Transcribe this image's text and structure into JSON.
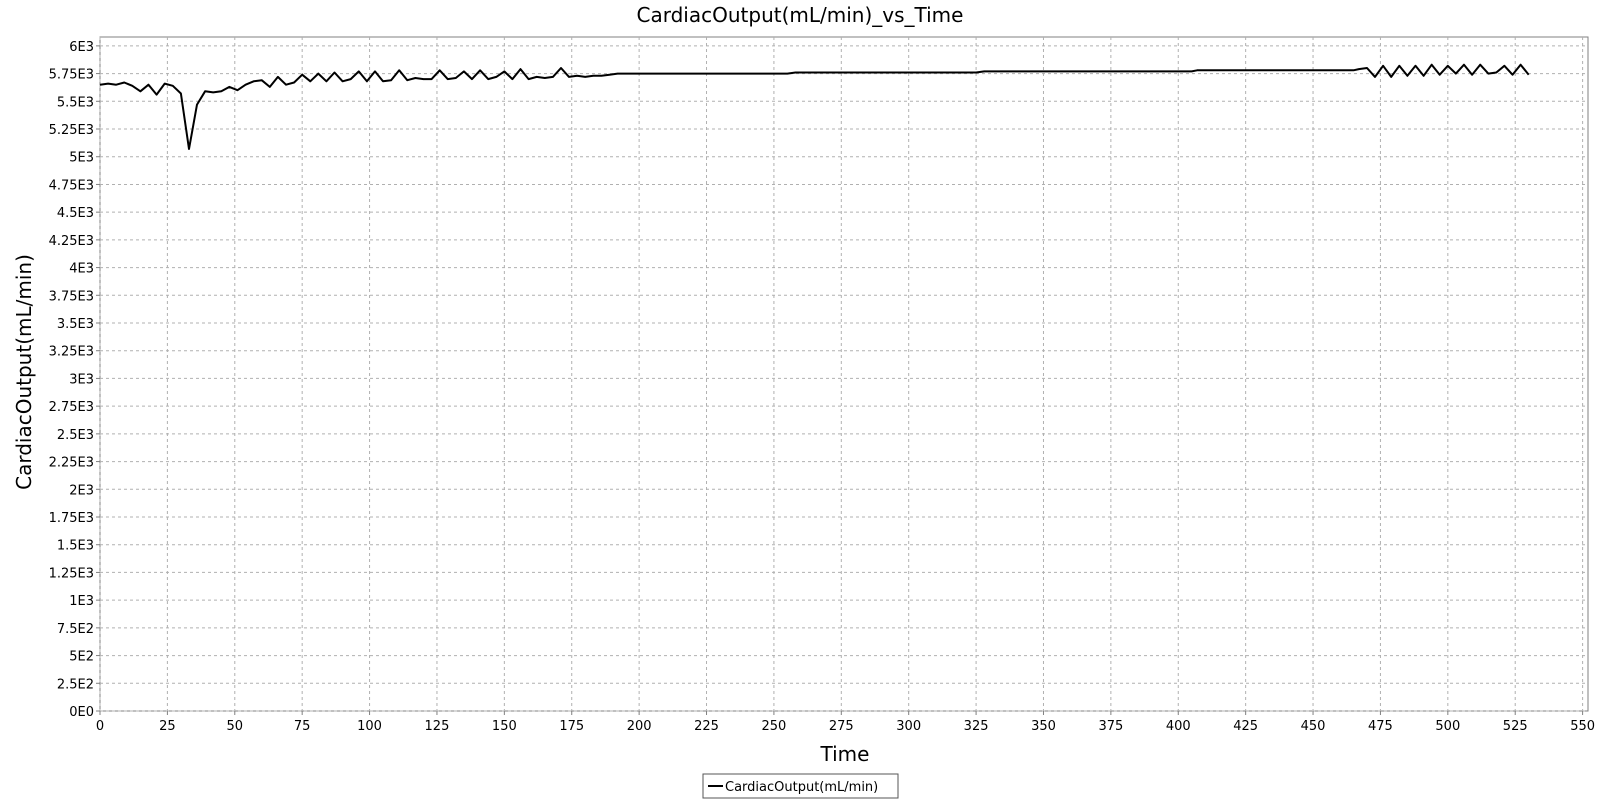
{
  "chart_data": {
    "type": "line",
    "title": "CardiacOutput(mL/min)_vs_Time",
    "xlabel": "Time",
    "ylabel": "CardiacOutput(mL/min)",
    "xlim": [
      0,
      552
    ],
    "ylim": [
      0,
      6080
    ],
    "grid": true,
    "legend_position": "bottom-center",
    "x_ticks": [
      0,
      25,
      50,
      75,
      100,
      125,
      150,
      175,
      200,
      225,
      250,
      275,
      300,
      325,
      350,
      375,
      400,
      425,
      450,
      475,
      500,
      525,
      550
    ],
    "x_tick_labels": [
      "0",
      "25",
      "50",
      "75",
      "100",
      "125",
      "150",
      "175",
      "200",
      "225",
      "250",
      "275",
      "300",
      "325",
      "350",
      "375",
      "400",
      "425",
      "450",
      "475",
      "500",
      "525",
      "550"
    ],
    "y_ticks": [
      0,
      250,
      500,
      750,
      1000,
      1250,
      1500,
      1750,
      2000,
      2250,
      2500,
      2750,
      3000,
      3250,
      3500,
      3750,
      4000,
      4250,
      4500,
      4750,
      5000,
      5250,
      5500,
      5750,
      6000
    ],
    "y_tick_labels": [
      "0E0",
      "2.5E2",
      "5E2",
      "7.5E2",
      "1E3",
      "1.25E3",
      "1.5E3",
      "1.75E3",
      "2E3",
      "2.25E3",
      "2.5E3",
      "2.75E3",
      "3E3",
      "3.25E3",
      "3.5E3",
      "3.75E3",
      "4E3",
      "4.25E3",
      "4.5E3",
      "4.75E3",
      "5E3",
      "5.25E3",
      "5.5E3",
      "5.75E3",
      "6E3"
    ],
    "series": [
      {
        "name": "CardiacOutput(mL/min)",
        "color": "#000000",
        "x": [
          0,
          3,
          6,
          9,
          12,
          15,
          18,
          21,
          24,
          27,
          30,
          33,
          36,
          39,
          42,
          45,
          48,
          51,
          54,
          57,
          60,
          63,
          66,
          69,
          72,
          75,
          78,
          81,
          84,
          87,
          90,
          93,
          96,
          99,
          102,
          105,
          108,
          111,
          114,
          117,
          120,
          123,
          126,
          129,
          132,
          135,
          138,
          141,
          144,
          147,
          150,
          153,
          156,
          159,
          162,
          165,
          168,
          171,
          174,
          177,
          180,
          183,
          186,
          189,
          192,
          195,
          200,
          225,
          250,
          255,
          258,
          275,
          300,
          325,
          328,
          350,
          375,
          400,
          405,
          407,
          425,
          450,
          460,
          465,
          467,
          470,
          473,
          476,
          479,
          482,
          485,
          488,
          491,
          494,
          497,
          500,
          503,
          506,
          509,
          512,
          515,
          518,
          521,
          524,
          527,
          530
        ],
        "y": [
          5650,
          5660,
          5650,
          5670,
          5640,
          5590,
          5650,
          5560,
          5660,
          5640,
          5570,
          5070,
          5470,
          5590,
          5580,
          5590,
          5630,
          5600,
          5650,
          5680,
          5690,
          5630,
          5720,
          5650,
          5670,
          5740,
          5680,
          5750,
          5680,
          5760,
          5680,
          5700,
          5770,
          5680,
          5770,
          5680,
          5690,
          5780,
          5690,
          5710,
          5700,
          5700,
          5780,
          5700,
          5710,
          5770,
          5700,
          5780,
          5700,
          5720,
          5770,
          5700,
          5790,
          5700,
          5720,
          5710,
          5720,
          5800,
          5720,
          5730,
          5720,
          5730,
          5730,
          5740,
          5750,
          5750,
          5750,
          5750,
          5750,
          5750,
          5760,
          5760,
          5760,
          5760,
          5770,
          5770,
          5770,
          5770,
          5770,
          5780,
          5780,
          5780,
          5780,
          5780,
          5790,
          5800,
          5720,
          5820,
          5720,
          5820,
          5730,
          5820,
          5730,
          5830,
          5740,
          5820,
          5750,
          5830,
          5740,
          5830,
          5750,
          5760,
          5820,
          5740,
          5830,
          5740
        ]
      }
    ]
  }
}
